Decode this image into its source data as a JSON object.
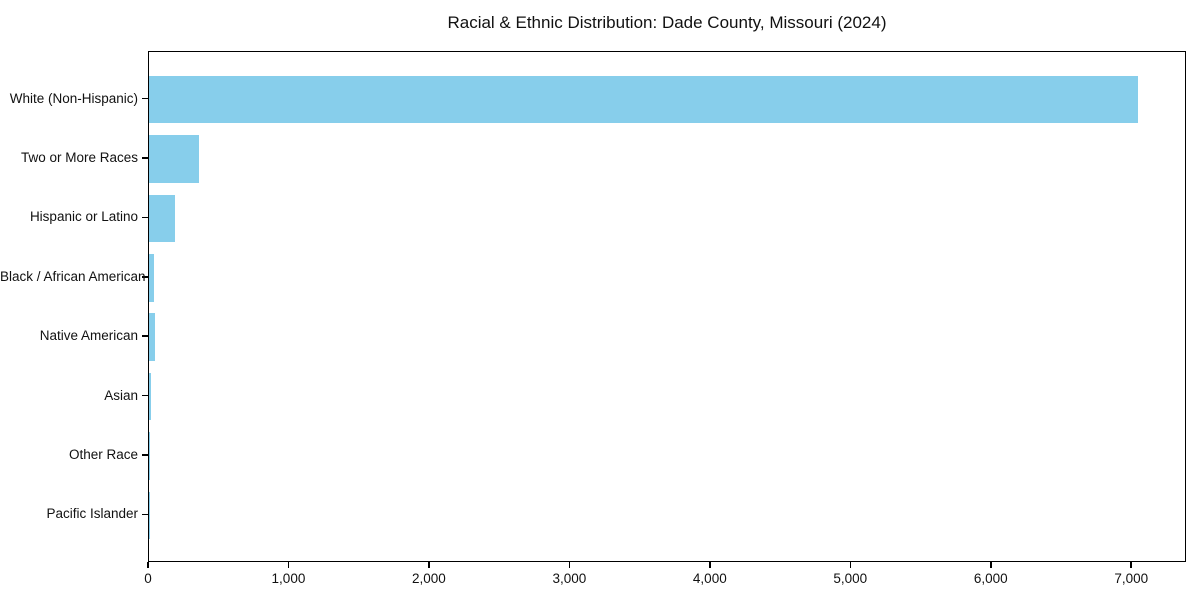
{
  "chart_data": {
    "type": "bar",
    "orientation": "horizontal",
    "title": "Racial & Ethnic Distribution: Dade County, Missouri (2024)",
    "categories": [
      "White (Non-Hispanic)",
      "Two or More Races",
      "Hispanic or Latino",
      "Black / African American",
      "Native American",
      "Asian",
      "Other Race",
      "Pacific Islander"
    ],
    "values": [
      7040,
      354,
      182,
      33,
      43,
      12,
      4,
      1
    ],
    "xlabel": "",
    "ylabel": "",
    "xlim": [
      0,
      7390
    ],
    "x_ticks": [
      0,
      1000,
      2000,
      3000,
      4000,
      5000,
      6000,
      7000
    ],
    "x_tick_labels": [
      "0",
      "1,000",
      "2,000",
      "3,000",
      "4,000",
      "5,000",
      "6,000",
      "7,000"
    ],
    "bar_color": "#87CEEB",
    "spine_color": "#000000",
    "text_color": "#111111",
    "grid": false,
    "legend": null
  }
}
